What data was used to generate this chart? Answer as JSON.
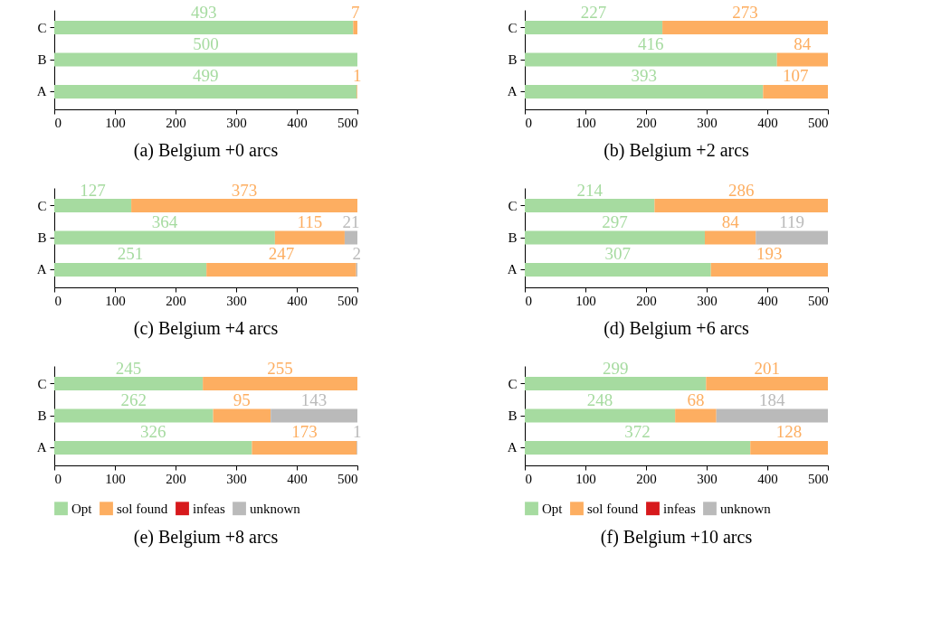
{
  "chart_data": [
    {
      "type": "bar",
      "orientation": "horizontal",
      "stacked": true,
      "title": "(a) Belgium +0 arcs",
      "categories": [
        "C",
        "B",
        "A"
      ],
      "xlim": [
        0,
        500
      ],
      "xticks": [
        0,
        100,
        200,
        300,
        400,
        500
      ],
      "grid": false,
      "legend": false,
      "series": [
        {
          "color": "#a6dba0",
          "values": [
            493,
            500,
            499
          ],
          "value_labels": [
            "493",
            "500",
            "499"
          ]
        },
        {
          "color": "#fdae61",
          "values": [
            7,
            0,
            1
          ],
          "value_labels": [
            "7",
            null,
            "1"
          ]
        }
      ]
    },
    {
      "type": "bar",
      "orientation": "horizontal",
      "stacked": true,
      "title": "(b) Belgium +2 arcs",
      "categories": [
        "C",
        "B",
        "A"
      ],
      "xlim": [
        0,
        500
      ],
      "xticks": [
        0,
        100,
        200,
        300,
        400,
        500
      ],
      "grid": false,
      "legend": false,
      "series": [
        {
          "color": "#a6dba0",
          "values": [
            227,
            416,
            393
          ],
          "value_labels": [
            "227",
            "416",
            "393"
          ]
        },
        {
          "color": "#fdae61",
          "values": [
            273,
            84,
            107
          ],
          "value_labels": [
            "273",
            "84",
            "107"
          ]
        }
      ]
    },
    {
      "type": "bar",
      "orientation": "horizontal",
      "stacked": true,
      "title": "(c) Belgium +4 arcs",
      "categories": [
        "C",
        "B",
        "A"
      ],
      "xlim": [
        0,
        500
      ],
      "xticks": [
        0,
        100,
        200,
        300,
        400,
        500
      ],
      "grid": false,
      "legend": false,
      "series": [
        {
          "color": "#a6dba0",
          "values": [
            127,
            364,
            251
          ],
          "value_labels": [
            "127",
            "364",
            "251"
          ]
        },
        {
          "color": "#fdae61",
          "values": [
            373,
            115,
            247
          ],
          "value_labels": [
            "373",
            "115",
            "247"
          ]
        },
        {
          "color": "#bababa",
          "values": [
            0,
            21,
            2
          ],
          "value_labels": [
            null,
            "21",
            "2"
          ]
        }
      ]
    },
    {
      "type": "bar",
      "orientation": "horizontal",
      "stacked": true,
      "title": "(d) Belgium +6 arcs",
      "categories": [
        "C",
        "B",
        "A"
      ],
      "xlim": [
        0,
        500
      ],
      "xticks": [
        0,
        100,
        200,
        300,
        400,
        500
      ],
      "grid": false,
      "legend": false,
      "series": [
        {
          "color": "#a6dba0",
          "values": [
            214,
            297,
            307
          ],
          "value_labels": [
            "214",
            "297",
            "307"
          ]
        },
        {
          "color": "#fdae61",
          "values": [
            286,
            84,
            193
          ],
          "value_labels": [
            "286",
            "84",
            "193"
          ]
        },
        {
          "color": "#bababa",
          "values": [
            0,
            119,
            0
          ],
          "value_labels": [
            null,
            "119",
            null
          ]
        }
      ]
    },
    {
      "type": "bar",
      "orientation": "horizontal",
      "stacked": true,
      "title": "(e) Belgium +8 arcs",
      "categories": [
        "C",
        "B",
        "A"
      ],
      "xlim": [
        0,
        500
      ],
      "xticks": [
        0,
        100,
        200,
        300,
        400,
        500
      ],
      "grid": false,
      "legend": "bottom",
      "series": [
        {
          "name": "Opt",
          "color": "#a6dba0",
          "values": [
            245,
            262,
            326
          ],
          "value_labels": [
            "245",
            "262",
            "326"
          ]
        },
        {
          "name": "sol found",
          "color": "#fdae61",
          "values": [
            255,
            95,
            173
          ],
          "value_labels": [
            "255",
            "95",
            "173"
          ]
        },
        {
          "name": "infeas",
          "color": "#d7191c",
          "values": [
            0,
            0,
            0
          ],
          "value_labels": [
            null,
            null,
            null
          ]
        },
        {
          "name": "unknown",
          "color": "#bababa",
          "values": [
            0,
            143,
            1
          ],
          "value_labels": [
            null,
            "143",
            "1"
          ]
        }
      ]
    },
    {
      "type": "bar",
      "orientation": "horizontal",
      "stacked": true,
      "title": "(f) Belgium +10 arcs",
      "categories": [
        "C",
        "B",
        "A"
      ],
      "xlim": [
        0,
        500
      ],
      "xticks": [
        0,
        100,
        200,
        300,
        400,
        500
      ],
      "grid": false,
      "legend": "bottom",
      "series": [
        {
          "name": "Opt",
          "color": "#a6dba0",
          "values": [
            299,
            248,
            372
          ],
          "value_labels": [
            "299",
            "248",
            "372"
          ]
        },
        {
          "name": "sol found",
          "color": "#fdae61",
          "values": [
            201,
            68,
            128
          ],
          "value_labels": [
            "201",
            "68",
            "128"
          ]
        },
        {
          "name": "infeas",
          "color": "#d7191c",
          "values": [
            0,
            0,
            0
          ],
          "value_labels": [
            null,
            null,
            null
          ]
        },
        {
          "name": "unknown",
          "color": "#bababa",
          "values": [
            0,
            184,
            0
          ],
          "value_labels": [
            null,
            "184",
            null
          ]
        }
      ]
    }
  ]
}
